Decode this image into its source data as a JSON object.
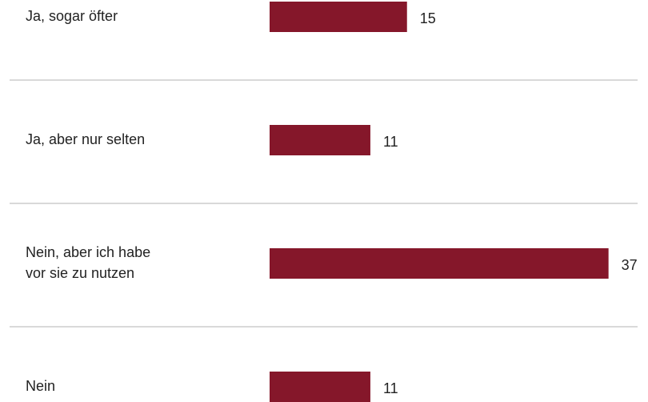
{
  "chart_data": {
    "type": "bar",
    "orientation": "horizontal",
    "categories": [
      "Ja, sogar öfter",
      "Ja, aber nur selten",
      "Nein, aber ich habe\nvor sie zu nutzen",
      "Nein"
    ],
    "values": [
      15,
      11,
      37,
      11
    ],
    "color": "#85172a"
  }
}
